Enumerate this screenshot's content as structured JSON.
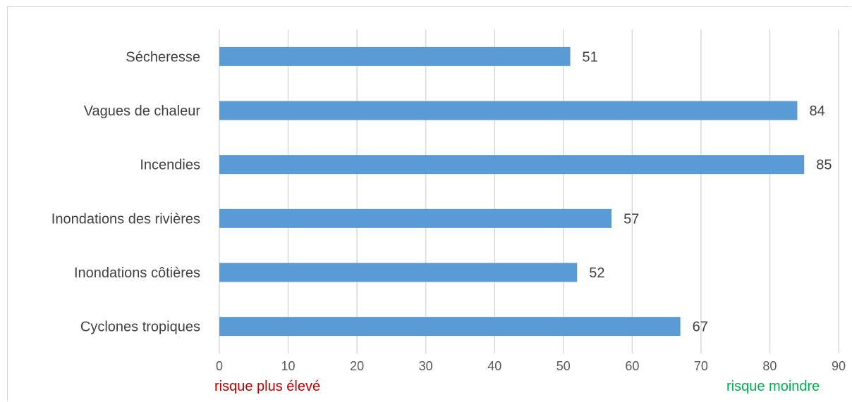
{
  "chart_data": {
    "type": "bar",
    "orientation": "horizontal",
    "categories": [
      "Sécheresse",
      "Vagues de chaleur",
      "Incendies",
      "Inondations des rivières",
      "Inondations côtières",
      "Cyclones tropiques"
    ],
    "values": [
      51,
      84,
      85,
      57,
      52,
      67
    ],
    "xlim": [
      0,
      90
    ],
    "xticks": [
      0,
      10,
      20,
      30,
      40,
      50,
      60,
      70,
      80,
      90
    ],
    "grid": true,
    "legend": "none",
    "data_labels": true,
    "bar_color": "#5b9bd5",
    "annotations": [
      {
        "text": "risque plus élevé",
        "color": "#c00000",
        "position": "bottom-left"
      },
      {
        "text": "risque moindre",
        "color": "#00b050",
        "position": "bottom-right"
      }
    ]
  }
}
